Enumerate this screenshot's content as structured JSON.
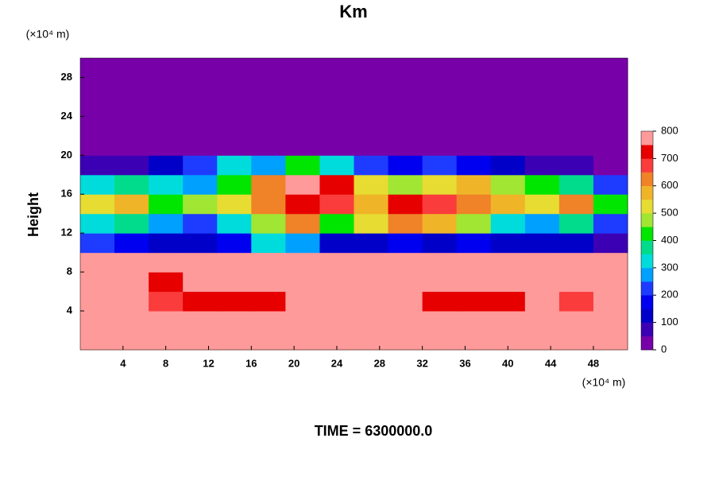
{
  "chart_data": {
    "type": "heatmap",
    "title": "Km",
    "y_unit_label": "(×10⁴ m)",
    "x_unit_label": "(×10⁴ m)",
    "ylabel": "Height",
    "footer": "TIME = 6300000.0",
    "xlim": [
      0,
      51.2
    ],
    "ylim": [
      0,
      30
    ],
    "xticks": [
      4,
      8,
      12,
      16,
      20,
      24,
      28,
      32,
      36,
      40,
      44,
      48
    ],
    "yticks": [
      4,
      8,
      12,
      16,
      20,
      24,
      28
    ],
    "x": [
      1.6,
      4.8,
      8,
      11.2,
      14.4,
      17.6,
      20.8,
      24,
      27.2,
      30.4,
      33.6,
      36.8,
      40,
      43.2,
      46.4,
      49.6
    ],
    "y": [
      1,
      3,
      5,
      7,
      9,
      11,
      13,
      15,
      17,
      19,
      21,
      23,
      25,
      27,
      29
    ],
    "z": [
      [
        800,
        800,
        800,
        800,
        800,
        800,
        790,
        780,
        800,
        800,
        800,
        800,
        800,
        800,
        800,
        800
      ],
      [
        800,
        780,
        760,
        800,
        790,
        780,
        760,
        800,
        800,
        790,
        780,
        800,
        800,
        800,
        770,
        800
      ],
      [
        790,
        770,
        650,
        740,
        720,
        700,
        760,
        780,
        800,
        760,
        700,
        740,
        720,
        780,
        680,
        780
      ],
      [
        800,
        790,
        740,
        780,
        760,
        790,
        750,
        800,
        800,
        790,
        780,
        800,
        790,
        800,
        780,
        800
      ],
      [
        760,
        770,
        760,
        780,
        790,
        780,
        760,
        790,
        800,
        800,
        790,
        780,
        770,
        760,
        780,
        790
      ],
      [
        200,
        150,
        120,
        100,
        150,
        300,
        250,
        120,
        120,
        150,
        130,
        160,
        120,
        100,
        110,
        80
      ],
      [
        300,
        350,
        250,
        200,
        300,
        450,
        600,
        400,
        500,
        600,
        550,
        480,
        300,
        250,
        350,
        200
      ],
      [
        500,
        550,
        400,
        450,
        500,
        600,
        700,
        650,
        550,
        700,
        650,
        600,
        550,
        500,
        600,
        400
      ],
      [
        300,
        350,
        300,
        250,
        400,
        600,
        750,
        700,
        500,
        450,
        500,
        550,
        450,
        400,
        350,
        200
      ],
      [
        50,
        80,
        100,
        200,
        300,
        250,
        400,
        300,
        200,
        150,
        200,
        180,
        100,
        60,
        50,
        20
      ],
      [
        0,
        0,
        0,
        0,
        0,
        0,
        0,
        0,
        0,
        0,
        0,
        0,
        0,
        0,
        0,
        0
      ],
      [
        0,
        0,
        0,
        0,
        0,
        0,
        0,
        0,
        0,
        0,
        0,
        0,
        0,
        0,
        0,
        0
      ],
      [
        0,
        0,
        0,
        0,
        0,
        0,
        0,
        0,
        0,
        0,
        0,
        0,
        0,
        0,
        0,
        0
      ],
      [
        0,
        0,
        0,
        0,
        0,
        0,
        0,
        0,
        0,
        0,
        0,
        0,
        0,
        0,
        0,
        0
      ],
      [
        0,
        0,
        0,
        0,
        0,
        0,
        0,
        0,
        0,
        0,
        0,
        0,
        0,
        0,
        0,
        0
      ]
    ],
    "clim": [
      0,
      800
    ],
    "cticks": [
      0,
      100,
      200,
      300,
      400,
      500,
      600,
      700,
      800
    ],
    "colors": [
      "#7800a8",
      "#3c00b4",
      "#0000c8",
      "#0000f0",
      "#1e3cff",
      "#00a0ff",
      "#00dcdc",
      "#00dc8c",
      "#00e600",
      "#a0e632",
      "#e6dc32",
      "#f0b428",
      "#f08228",
      "#fa3c3c",
      "#e60000",
      "#ff9a9a"
    ]
  }
}
